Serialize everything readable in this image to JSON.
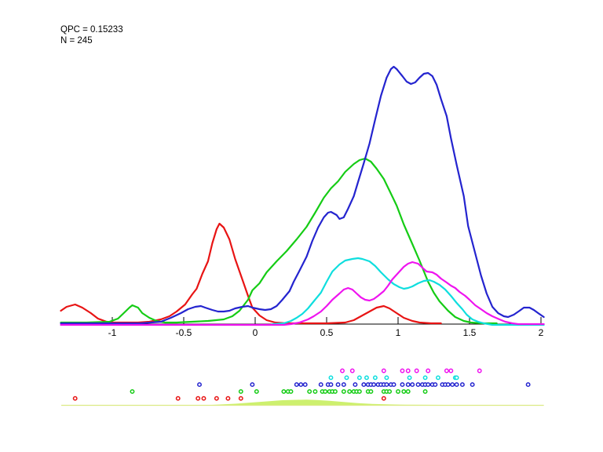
{
  "annotation": {
    "line1": "QPC = 0.15233",
    "line2": "N = 245"
  },
  "colors": {
    "red": "#e81414",
    "green": "#15cc15",
    "blue": "#2424cf",
    "cyan": "#0fdede",
    "magenta": "#ef14ef",
    "bottom_fill": "#cdf06e",
    "bottom_baseline": "#dcea85",
    "axis": "#000000",
    "background": "#ffffff"
  },
  "chart_data": {
    "type": "line",
    "title": "",
    "xlabel": "",
    "ylabel": "",
    "legend": "none",
    "grid": false,
    "xlim": [
      -1.357,
      2.02
    ],
    "x_ticks": [
      -1,
      -0.5,
      0,
      0.5,
      1,
      1.5,
      2
    ],
    "x_tick_labels": [
      "-1",
      "-0.5",
      "0",
      "0.5",
      "1",
      "1.5",
      "2"
    ],
    "y_unit": "density (pixels above baseline, unlabeled axis)",
    "series": [
      {
        "name": "red",
        "color": "#e81414",
        "points": [
          [
            -1.36,
            17
          ],
          [
            -1.32,
            22
          ],
          [
            -1.26,
            25
          ],
          [
            -1.21,
            21
          ],
          [
            -1.15,
            14
          ],
          [
            -1.1,
            7
          ],
          [
            -1.04,
            3
          ],
          [
            -0.99,
            2
          ],
          [
            -0.9,
            2
          ],
          [
            -0.82,
            2
          ],
          [
            -0.74,
            3
          ],
          [
            -0.66,
            6
          ],
          [
            -0.6,
            10
          ],
          [
            -0.55,
            16
          ],
          [
            -0.49,
            25
          ],
          [
            -0.44,
            38
          ],
          [
            -0.41,
            45
          ],
          [
            -0.37,
            64
          ],
          [
            -0.33,
            80
          ],
          [
            -0.3,
            103
          ],
          [
            -0.27,
            121
          ],
          [
            -0.25,
            128
          ],
          [
            -0.22,
            123
          ],
          [
            -0.18,
            108
          ],
          [
            -0.14,
            83
          ],
          [
            -0.09,
            57
          ],
          [
            -0.05,
            36
          ],
          [
            -0.02,
            21
          ],
          [
            0.03,
            11
          ],
          [
            0.08,
            5
          ],
          [
            0.14,
            2
          ],
          [
            0.22,
            1
          ],
          [
            0.36,
            1
          ],
          [
            0.5,
            1
          ],
          [
            0.63,
            2
          ],
          [
            0.69,
            5
          ],
          [
            0.74,
            10
          ],
          [
            0.8,
            16
          ],
          [
            0.85,
            21
          ],
          [
            0.9,
            23
          ],
          [
            0.94,
            20
          ],
          [
            0.99,
            14
          ],
          [
            1.04,
            8
          ],
          [
            1.1,
            4
          ],
          [
            1.15,
            2
          ],
          [
            1.23,
            1
          ],
          [
            1.3,
            1
          ]
        ]
      },
      {
        "name": "green",
        "color": "#15cc15",
        "points": [
          [
            -1.36,
            2
          ],
          [
            -1.18,
            2
          ],
          [
            -1.02,
            3
          ],
          [
            -0.96,
            7
          ],
          [
            -0.92,
            14
          ],
          [
            -0.88,
            21
          ],
          [
            -0.86,
            24
          ],
          [
            -0.82,
            21
          ],
          [
            -0.79,
            14
          ],
          [
            -0.74,
            8
          ],
          [
            -0.69,
            4
          ],
          [
            -0.63,
            2
          ],
          [
            -0.55,
            2
          ],
          [
            -0.44,
            3
          ],
          [
            -0.33,
            4
          ],
          [
            -0.22,
            6
          ],
          [
            -0.16,
            10
          ],
          [
            -0.11,
            17
          ],
          [
            -0.05,
            31
          ],
          [
            -0.02,
            43
          ],
          [
            0.03,
            52
          ],
          [
            0.08,
            66
          ],
          [
            0.15,
            80
          ],
          [
            0.22,
            93
          ],
          [
            0.29,
            108
          ],
          [
            0.36,
            124
          ],
          [
            0.42,
            142
          ],
          [
            0.48,
            161
          ],
          [
            0.53,
            173
          ],
          [
            0.58,
            182
          ],
          [
            0.63,
            194
          ],
          [
            0.69,
            204
          ],
          [
            0.73,
            209
          ],
          [
            0.77,
            211
          ],
          [
            0.81,
            207
          ],
          [
            0.85,
            198
          ],
          [
            0.9,
            185
          ],
          [
            0.94,
            170
          ],
          [
            0.99,
            151
          ],
          [
            1.04,
            127
          ],
          [
            1.1,
            102
          ],
          [
            1.15,
            81
          ],
          [
            1.21,
            54
          ],
          [
            1.25,
            40
          ],
          [
            1.29,
            29
          ],
          [
            1.35,
            17
          ],
          [
            1.4,
            9
          ],
          [
            1.46,
            4
          ],
          [
            1.51,
            2
          ],
          [
            1.59,
            1
          ],
          [
            1.69,
            1
          ]
        ]
      },
      {
        "name": "blue",
        "color": "#2424cf",
        "points": [
          [
            -1.36,
            1
          ],
          [
            -1.07,
            1
          ],
          [
            -0.8,
            1
          ],
          [
            -0.66,
            3
          ],
          [
            -0.59,
            8
          ],
          [
            -0.52,
            14
          ],
          [
            -0.47,
            19
          ],
          [
            -0.42,
            22
          ],
          [
            -0.38,
            23
          ],
          [
            -0.35,
            21
          ],
          [
            -0.3,
            18
          ],
          [
            -0.26,
            16
          ],
          [
            -0.22,
            16
          ],
          [
            -0.18,
            17
          ],
          [
            -0.14,
            20
          ],
          [
            -0.09,
            22
          ],
          [
            -0.05,
            23
          ],
          [
            -0.02,
            21
          ],
          [
            0.03,
            19
          ],
          [
            0.07,
            18
          ],
          [
            0.11,
            19
          ],
          [
            0.15,
            23
          ],
          [
            0.19,
            31
          ],
          [
            0.24,
            42
          ],
          [
            0.27,
            54
          ],
          [
            0.31,
            68
          ],
          [
            0.36,
            86
          ],
          [
            0.4,
            106
          ],
          [
            0.44,
            123
          ],
          [
            0.48,
            136
          ],
          [
            0.51,
            142
          ],
          [
            0.53,
            143
          ],
          [
            0.57,
            139
          ],
          [
            0.59,
            134
          ],
          [
            0.62,
            136
          ],
          [
            0.65,
            147
          ],
          [
            0.69,
            163
          ],
          [
            0.72,
            181
          ],
          [
            0.76,
            205
          ],
          [
            0.8,
            230
          ],
          [
            0.84,
            261
          ],
          [
            0.88,
            291
          ],
          [
            0.92,
            314
          ],
          [
            0.95,
            325
          ],
          [
            0.97,
            328
          ],
          [
            0.99,
            325
          ],
          [
            1.03,
            316
          ],
          [
            1.06,
            309
          ],
          [
            1.09,
            306
          ],
          [
            1.12,
            308
          ],
          [
            1.15,
            314
          ],
          [
            1.18,
            319
          ],
          [
            1.21,
            320
          ],
          [
            1.24,
            316
          ],
          [
            1.27,
            305
          ],
          [
            1.3,
            287
          ],
          [
            1.34,
            265
          ],
          [
            1.37,
            237
          ],
          [
            1.41,
            203
          ],
          [
            1.46,
            163
          ],
          [
            1.49,
            125
          ],
          [
            1.54,
            90
          ],
          [
            1.58,
            62
          ],
          [
            1.62,
            39
          ],
          [
            1.66,
            22
          ],
          [
            1.7,
            14
          ],
          [
            1.74,
            10
          ],
          [
            1.77,
            9
          ],
          [
            1.81,
            12
          ],
          [
            1.85,
            17
          ],
          [
            1.88,
            21
          ],
          [
            1.92,
            21
          ],
          [
            1.95,
            18
          ],
          [
            1.98,
            14
          ],
          [
            2.02,
            9
          ]
        ]
      },
      {
        "name": "cyan",
        "color": "#0fdede",
        "points": [
          [
            0.12,
            0
          ],
          [
            0.2,
            1
          ],
          [
            0.25,
            4
          ],
          [
            0.29,
            8
          ],
          [
            0.33,
            13
          ],
          [
            0.37,
            20
          ],
          [
            0.41,
            29
          ],
          [
            0.46,
            40
          ],
          [
            0.5,
            54
          ],
          [
            0.54,
            67
          ],
          [
            0.59,
            76
          ],
          [
            0.63,
            81
          ],
          [
            0.68,
            83
          ],
          [
            0.72,
            84
          ],
          [
            0.75,
            83
          ],
          [
            0.8,
            80
          ],
          [
            0.84,
            74
          ],
          [
            0.88,
            66
          ],
          [
            0.93,
            57
          ],
          [
            0.97,
            51
          ],
          [
            1.01,
            47
          ],
          [
            1.04,
            45
          ],
          [
            1.07,
            46
          ],
          [
            1.1,
            48
          ],
          [
            1.14,
            52
          ],
          [
            1.18,
            55
          ],
          [
            1.22,
            56
          ],
          [
            1.25,
            54
          ],
          [
            1.29,
            50
          ],
          [
            1.33,
            44
          ],
          [
            1.37,
            36
          ],
          [
            1.41,
            27
          ],
          [
            1.45,
            19
          ],
          [
            1.48,
            12
          ],
          [
            1.52,
            6
          ],
          [
            1.56,
            3
          ],
          [
            1.6,
            1
          ],
          [
            1.66,
            -1
          ],
          [
            1.8,
            -1
          ],
          [
            2.02,
            -1
          ]
        ]
      },
      {
        "name": "magenta",
        "color": "#ef14ef",
        "points": [
          [
            -1.36,
            -1
          ],
          [
            -1.0,
            -1
          ],
          [
            -0.6,
            -1
          ],
          [
            -0.2,
            -1
          ],
          [
            0.1,
            -1
          ],
          [
            0.2,
            -1
          ],
          [
            0.25,
            0
          ],
          [
            0.31,
            2
          ],
          [
            0.37,
            6
          ],
          [
            0.41,
            10
          ],
          [
            0.46,
            16
          ],
          [
            0.5,
            23
          ],
          [
            0.54,
            31
          ],
          [
            0.59,
            39
          ],
          [
            0.62,
            44
          ],
          [
            0.65,
            46
          ],
          [
            0.68,
            44
          ],
          [
            0.71,
            39
          ],
          [
            0.74,
            34
          ],
          [
            0.77,
            31
          ],
          [
            0.8,
            30
          ],
          [
            0.83,
            32
          ],
          [
            0.86,
            36
          ],
          [
            0.9,
            42
          ],
          [
            0.93,
            49
          ],
          [
            0.96,
            57
          ],
          [
            1.0,
            65
          ],
          [
            1.04,
            73
          ],
          [
            1.07,
            77
          ],
          [
            1.1,
            79
          ],
          [
            1.14,
            77
          ],
          [
            1.17,
            72
          ],
          [
            1.2,
            67
          ],
          [
            1.24,
            66
          ],
          [
            1.27,
            63
          ],
          [
            1.3,
            58
          ],
          [
            1.34,
            53
          ],
          [
            1.37,
            49
          ],
          [
            1.4,
            46
          ],
          [
            1.43,
            41
          ],
          [
            1.47,
            36
          ],
          [
            1.5,
            31
          ],
          [
            1.54,
            24
          ],
          [
            1.58,
            19
          ],
          [
            1.62,
            14
          ],
          [
            1.66,
            10
          ],
          [
            1.71,
            6
          ],
          [
            1.75,
            3
          ],
          [
            1.8,
            1
          ],
          [
            1.84,
            0
          ],
          [
            1.93,
            0
          ],
          [
            2.02,
            0
          ]
        ]
      }
    ],
    "rug": [
      {
        "name": "magenta",
        "color": "#ef14ef",
        "row": 0,
        "values": [
          0.61,
          0.68,
          0.9,
          1.03,
          1.07,
          1.13,
          1.21,
          1.34,
          1.37,
          1.57
        ]
      },
      {
        "name": "cyan",
        "color": "#0fdede",
        "row": 1,
        "values": [
          0.53,
          0.64,
          0.73,
          0.78,
          0.84,
          0.92,
          1.08,
          1.19,
          1.28,
          1.4,
          1.41
        ]
      },
      {
        "name": "blue",
        "color": "#2424cf",
        "row": 2,
        "values": [
          -0.39,
          -0.02,
          0.29,
          0.32,
          0.35,
          0.46,
          0.51,
          0.53,
          0.58,
          0.62,
          0.7,
          0.76,
          0.79,
          0.81,
          0.83,
          0.86,
          0.88,
          0.9,
          0.92,
          0.95,
          0.97,
          1.03,
          1.07,
          1.1,
          1.14,
          1.17,
          1.19,
          1.21,
          1.24,
          1.26,
          1.31,
          1.33,
          1.35,
          1.38,
          1.41,
          1.45,
          1.52,
          1.91
        ]
      },
      {
        "name": "green",
        "color": "#15cc15",
        "row": 3,
        "values": [
          -0.86,
          -0.1,
          0.01,
          0.2,
          0.23,
          0.25,
          0.38,
          0.42,
          0.47,
          0.49,
          0.52,
          0.54,
          0.56,
          0.62,
          0.66,
          0.69,
          0.71,
          0.73,
          0.79,
          0.81,
          0.9,
          0.92,
          0.94,
          1.0,
          1.04,
          1.07,
          1.19
        ]
      },
      {
        "name": "red",
        "color": "#e81414",
        "row": 4,
        "values": [
          -1.26,
          -0.54,
          -0.4,
          -0.36,
          -0.27,
          -0.19,
          -0.1,
          0.9
        ]
      }
    ],
    "bottom_density": {
      "fill_color": "#cdf06e",
      "baseline_color": "#dcea85",
      "points": [
        [
          -0.36,
          0
        ],
        [
          -0.25,
          1
        ],
        [
          -0.14,
          2
        ],
        [
          -0.03,
          3.5
        ],
        [
          0.08,
          5
        ],
        [
          0.19,
          6.5
        ],
        [
          0.29,
          7
        ],
        [
          0.36,
          7.2
        ],
        [
          0.43,
          6.8
        ],
        [
          0.52,
          5.8
        ],
        [
          0.62,
          4.3
        ],
        [
          0.72,
          2.8
        ],
        [
          0.82,
          1.8
        ],
        [
          0.92,
          1.2
        ],
        [
          1.05,
          0.8
        ],
        [
          1.2,
          0.6
        ],
        [
          1.45,
          0.4
        ],
        [
          1.7,
          0.2
        ],
        [
          2.0,
          0
        ]
      ]
    }
  }
}
